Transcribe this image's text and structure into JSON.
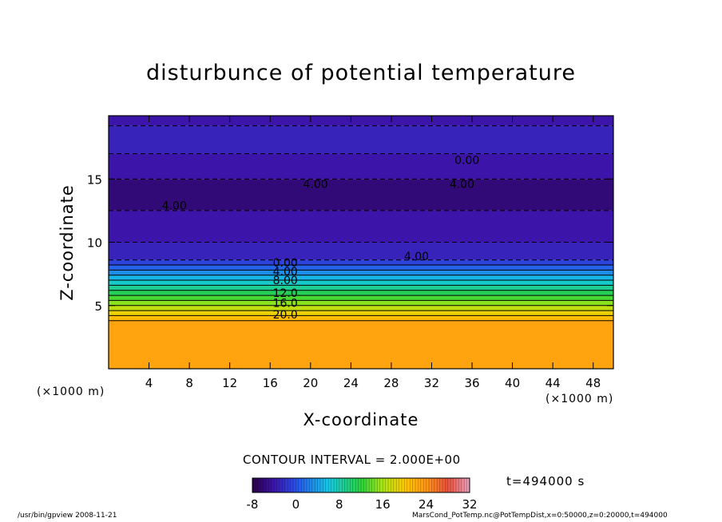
{
  "chart_data": {
    "type": "heatmap",
    "title": "disturbunce of potential temperature",
    "xlabel": "X-coordinate",
    "ylabel": "Z-coordinate",
    "x_unit": "(×1000 m)",
    "y_unit": "(×1000 m)",
    "xlim": [
      0,
      50
    ],
    "ylim": [
      0,
      20
    ],
    "x_ticks": [
      4,
      8,
      12,
      16,
      20,
      24,
      28,
      32,
      36,
      40,
      44,
      48
    ],
    "y_ticks": [
      5,
      10,
      15
    ],
    "contour_interval_text": "CONTOUR INTERVAL = 2.000E+00",
    "colorbar": {
      "min": -8,
      "max": 32,
      "ticks": [
        "-8",
        "0",
        "8",
        "16",
        "24",
        "32"
      ]
    },
    "contour_labels": [
      {
        "text": "0.00",
        "x": 35.5,
        "z": 16.5
      },
      {
        "text": "4.00",
        "x": 20.5,
        "z": 14.6
      },
      {
        "text": "4.00",
        "x": 35.0,
        "z": 14.6
      },
      {
        "text": "4.00",
        "x": 6.5,
        "z": 12.9
      },
      {
        "text": "4.00",
        "x": 30.5,
        "z": 8.9
      },
      {
        "text": "0.00",
        "x": 17.5,
        "z": 8.4
      },
      {
        "text": "4.00",
        "x": 17.5,
        "z": 7.7
      },
      {
        "text": "8.00",
        "x": 17.5,
        "z": 7.0
      },
      {
        "text": "12.0",
        "x": 17.5,
        "z": 6.0
      },
      {
        "text": "16.0",
        "x": 17.5,
        "z": 5.2
      },
      {
        "text": "20.0",
        "x": 17.5,
        "z": 4.3
      }
    ],
    "layers": [
      {
        "z": [
          19.2,
          20.0
        ],
        "value": -4
      },
      {
        "z": [
          17.0,
          19.2
        ],
        "value": -3
      },
      {
        "z": [
          15.0,
          17.0
        ],
        "value": -4
      },
      {
        "z": [
          12.5,
          15.0
        ],
        "value": -6
      },
      {
        "z": [
          10.0,
          12.5
        ],
        "value": -4
      },
      {
        "z": [
          8.6,
          10.0
        ],
        "value": -3
      },
      {
        "z": [
          8.2,
          8.6
        ],
        "value": -1
      },
      {
        "z": [
          7.8,
          8.2
        ],
        "value": 1
      },
      {
        "z": [
          7.4,
          7.8
        ],
        "value": 3
      },
      {
        "z": [
          7.0,
          7.4
        ],
        "value": 5
      },
      {
        "z": [
          6.6,
          7.0
        ],
        "value": 7
      },
      {
        "z": [
          6.2,
          6.6
        ],
        "value": 9
      },
      {
        "z": [
          5.8,
          6.2
        ],
        "value": 11
      },
      {
        "z": [
          5.4,
          5.8
        ],
        "value": 13
      },
      {
        "z": [
          5.0,
          5.4
        ],
        "value": 15
      },
      {
        "z": [
          4.6,
          5.0
        ],
        "value": 17
      },
      {
        "z": [
          4.2,
          4.6
        ],
        "value": 19
      },
      {
        "z": [
          3.8,
          4.2
        ],
        "value": 21
      },
      {
        "z": [
          0.0,
          3.8
        ],
        "value": 23
      }
    ],
    "timestamp": "t=494000 s"
  },
  "footer": {
    "left": "/usr/bin/gpview   2008-11-21",
    "right": "MarsCond_PotTemp.nc@PotTempDist,x=0:50000,z=0:20000,t=494000"
  }
}
